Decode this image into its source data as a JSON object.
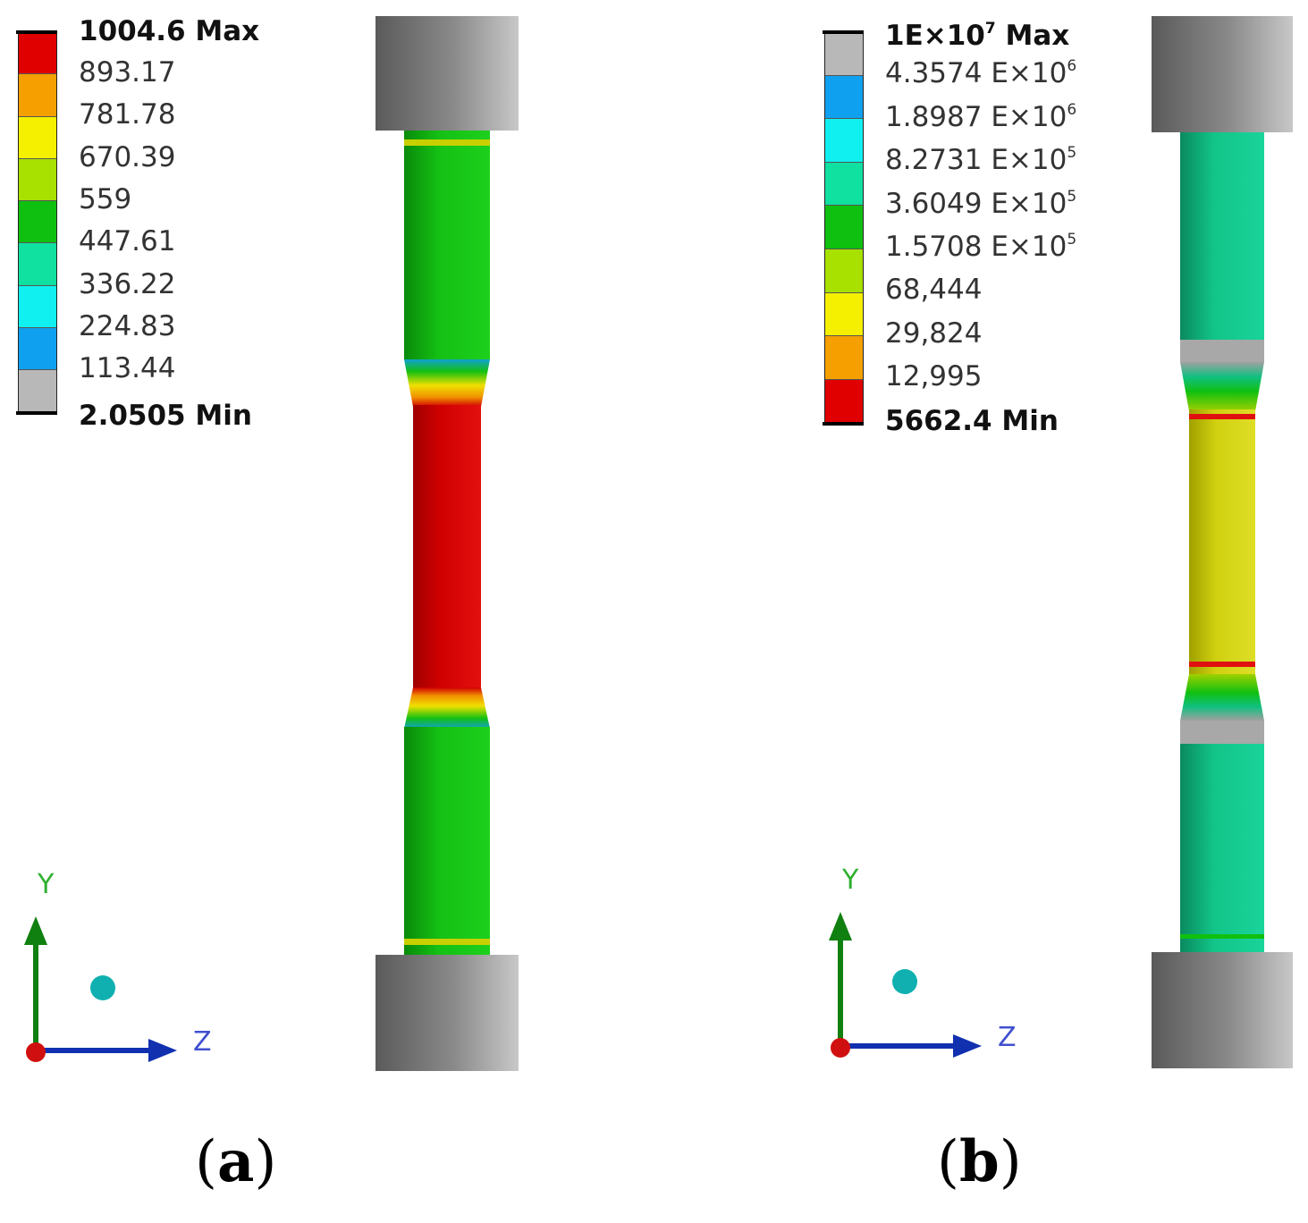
{
  "panel_a": {
    "caption": "(a)",
    "legend": {
      "max_label": "1004.6 Max",
      "min_label": "2.0505 Min",
      "ticks": [
        "893.17",
        "781.78",
        "670.39",
        "559",
        "447.61",
        "336.22",
        "224.83",
        "113.44"
      ],
      "colors": [
        "#e00000",
        "#f5a000",
        "#f5f000",
        "#a8e000",
        "#10c010",
        "#10e0a0",
        "#10f0f0",
        "#10a0f0",
        "#b8b8b8"
      ]
    },
    "axes": {
      "y_label": "Y",
      "z_label": "Z"
    }
  },
  "panel_b": {
    "caption": "(b)",
    "legend": {
      "max_label_base": "1E×10",
      "max_label_exp": "7",
      "max_label_suffix": " Max",
      "min_label": "5662.4 Min",
      "ticks": [
        {
          "base": "4.3574 E×10",
          "exp": "6"
        },
        {
          "base": "1.8987 E×10",
          "exp": "6"
        },
        {
          "base": "8.2731 E×10",
          "exp": "5"
        },
        {
          "base": "3.6049 E×10",
          "exp": "5"
        },
        {
          "base": "1.5708 E×10",
          "exp": "5"
        },
        {
          "base": "68,444",
          "exp": ""
        },
        {
          "base": "29,824",
          "exp": ""
        },
        {
          "base": "12,995",
          "exp": ""
        }
      ],
      "colors": [
        "#b8b8b8",
        "#10a0f0",
        "#10f0f0",
        "#10e0a0",
        "#10c010",
        "#a8e000",
        "#f5f000",
        "#f5a000",
        "#e00000"
      ]
    },
    "axes": {
      "y_label": "Y",
      "z_label": "Z"
    }
  }
}
